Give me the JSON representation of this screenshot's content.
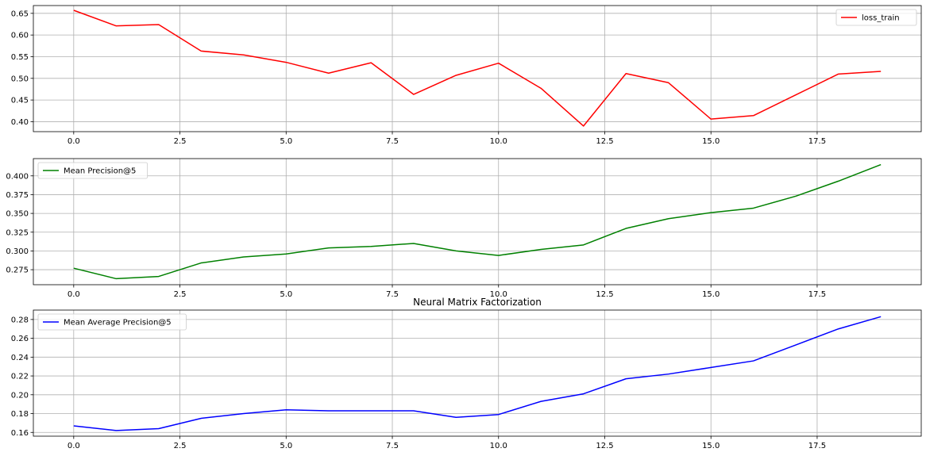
{
  "figure": {
    "title": "Neural Matrix Factorization"
  },
  "chart_data": [
    {
      "type": "line",
      "title": "",
      "xlabel": "",
      "ylabel": "",
      "xlim": [
        -0.95,
        19.95
      ],
      "ylim": [
        0.377,
        0.668
      ],
      "xticks": [
        0.0,
        2.5,
        5.0,
        7.5,
        10.0,
        12.5,
        15.0,
        17.5
      ],
      "xtick_labels": [
        "0.0",
        "2.5",
        "5.0",
        "7.5",
        "10.0",
        "12.5",
        "15.0",
        "17.5"
      ],
      "yticks": [
        0.4,
        0.45,
        0.5,
        0.55,
        0.6,
        0.65
      ],
      "ytick_labels": [
        "0.40",
        "0.45",
        "0.50",
        "0.55",
        "0.60",
        "0.65"
      ],
      "grid": true,
      "legend_position": "top-right",
      "series": [
        {
          "name": "loss_train",
          "color": "#ff0000",
          "x": [
            0,
            1,
            2,
            3,
            4,
            5,
            6,
            7,
            8,
            9,
            10,
            11,
            12,
            13,
            14,
            15,
            16,
            17,
            18,
            19
          ],
          "y": [
            0.657,
            0.621,
            0.624,
            0.563,
            0.554,
            0.537,
            0.512,
            0.536,
            0.463,
            0.507,
            0.535,
            0.477,
            0.39,
            0.511,
            0.49,
            0.406,
            0.414,
            0.462,
            0.51,
            0.516
          ]
        }
      ]
    },
    {
      "type": "line",
      "title": "",
      "xlabel": "",
      "ylabel": "",
      "xlim": [
        -0.95,
        19.95
      ],
      "ylim": [
        0.255,
        0.423
      ],
      "xticks": [
        0.0,
        2.5,
        5.0,
        7.5,
        10.0,
        12.5,
        15.0,
        17.5
      ],
      "xtick_labels": [
        "0.0",
        "2.5",
        "5.0",
        "7.5",
        "10.0",
        "12.5",
        "15.0",
        "17.5"
      ],
      "yticks": [
        0.275,
        0.3,
        0.325,
        0.35,
        0.375,
        0.4
      ],
      "ytick_labels": [
        "0.275",
        "0.300",
        "0.325",
        "0.350",
        "0.375",
        "0.400"
      ],
      "grid": true,
      "legend_position": "top-left",
      "series": [
        {
          "name": "Mean Precision@5",
          "color": "#008000",
          "x": [
            0,
            1,
            2,
            3,
            4,
            5,
            6,
            7,
            8,
            9,
            10,
            11,
            12,
            13,
            14,
            15,
            16,
            17,
            18,
            19
          ],
          "y": [
            0.277,
            0.263,
            0.266,
            0.284,
            0.292,
            0.296,
            0.304,
            0.306,
            0.31,
            0.3,
            0.294,
            0.302,
            0.308,
            0.33,
            0.343,
            0.351,
            0.357,
            0.373,
            0.393,
            0.415
          ]
        }
      ]
    },
    {
      "type": "line",
      "title": "Neural Matrix Factorization",
      "xlabel": "",
      "ylabel": "",
      "xlim": [
        -0.95,
        19.95
      ],
      "ylim": [
        0.156,
        0.29
      ],
      "xticks": [
        0.0,
        2.5,
        5.0,
        7.5,
        10.0,
        12.5,
        15.0,
        17.5
      ],
      "xtick_labels": [
        "0.0",
        "2.5",
        "5.0",
        "7.5",
        "10.0",
        "12.5",
        "15.0",
        "17.5"
      ],
      "yticks": [
        0.16,
        0.18,
        0.2,
        0.22,
        0.24,
        0.26,
        0.28
      ],
      "ytick_labels": [
        "0.16",
        "0.18",
        "0.20",
        "0.22",
        "0.24",
        "0.26",
        "0.28"
      ],
      "grid": true,
      "legend_position": "top-left",
      "series": [
        {
          "name": "Mean Average Precision@5",
          "color": "#0000ff",
          "x": [
            0,
            1,
            2,
            3,
            4,
            5,
            6,
            7,
            8,
            9,
            10,
            11,
            12,
            13,
            14,
            15,
            16,
            17,
            18,
            19
          ],
          "y": [
            0.167,
            0.162,
            0.164,
            0.175,
            0.18,
            0.184,
            0.183,
            0.183,
            0.183,
            0.176,
            0.179,
            0.193,
            0.201,
            0.217,
            0.222,
            0.229,
            0.236,
            0.253,
            0.27,
            0.283
          ]
        }
      ]
    }
  ]
}
